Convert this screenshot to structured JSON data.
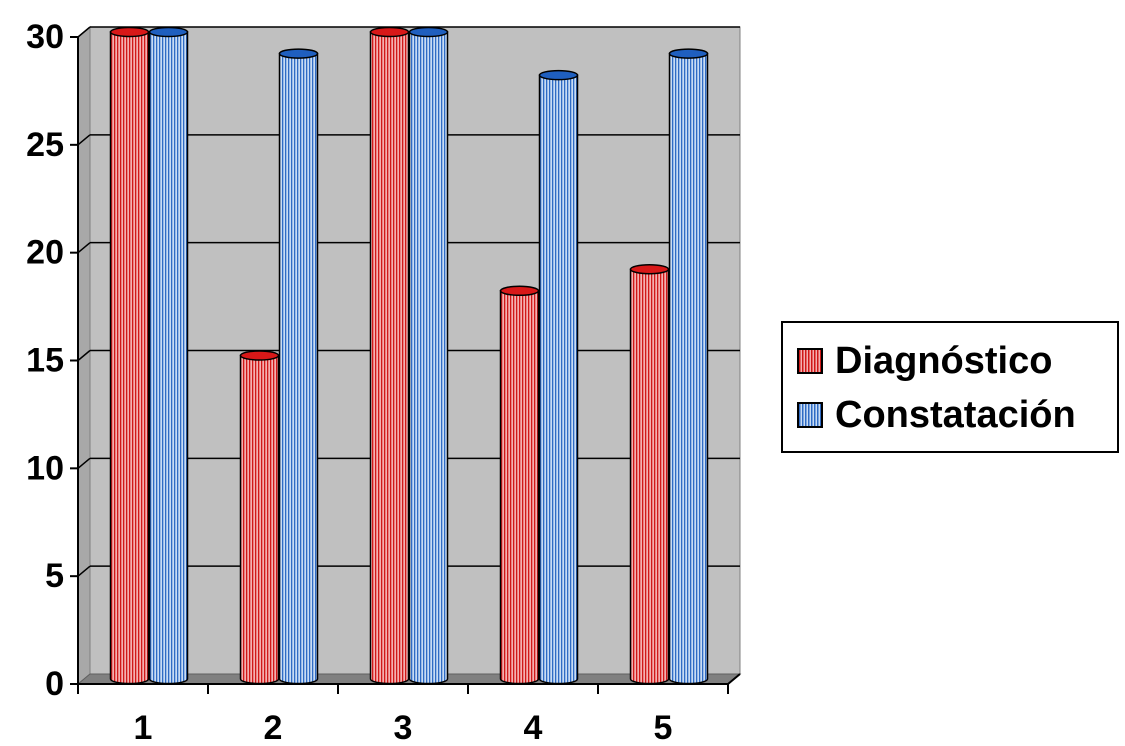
{
  "chart_data": {
    "type": "bar",
    "categories": [
      "1",
      "2",
      "3",
      "4",
      "5"
    ],
    "series": [
      {
        "name": "Diagnóstico",
        "values": [
          30,
          15,
          30,
          18,
          19
        ],
        "color": "#e03030"
      },
      {
        "name": "Constatación",
        "values": [
          30,
          29,
          30,
          28,
          29
        ],
        "color": "#3a78d0"
      }
    ],
    "title": "",
    "xlabel": "",
    "ylabel": "",
    "ylim": [
      0,
      30
    ],
    "yticks": [
      "0",
      "5",
      "10",
      "15",
      "20",
      "25",
      "30"
    ],
    "grid": true,
    "legend_position": "right",
    "plot_background": "#c0c0c0"
  }
}
